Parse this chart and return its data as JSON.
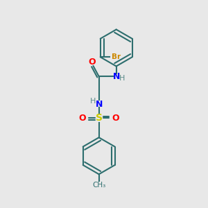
{
  "bg_color": "#e8e8e8",
  "bond_color": "#2d6e6e",
  "bond_width": 1.5,
  "atom_colors": {
    "O": "#ff0000",
    "N": "#0000ff",
    "S": "#cccc00",
    "Br": "#cc8800",
    "C": "#2d6e6e",
    "H": "#5a8a8a"
  },
  "figsize": [
    3.0,
    3.0
  ],
  "dpi": 100
}
